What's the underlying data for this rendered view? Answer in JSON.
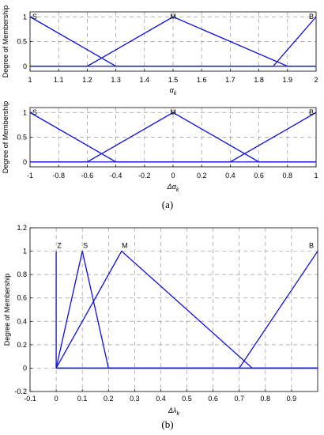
{
  "panels": {
    "a": "(a)",
    "b": "(b)"
  },
  "chart_data": [
    {
      "type": "line",
      "ylabel": "Degree of Membership",
      "xlabel_main": "α",
      "xlabel_sub": "k",
      "xlim": [
        1,
        2
      ],
      "ylim": [
        -0.1,
        1.1
      ],
      "xticks": [
        1,
        1.1,
        1.2,
        1.3,
        1.4,
        1.5,
        1.6,
        1.7,
        1.8,
        1.9,
        2
      ],
      "xtick_labels": [
        "1",
        "1.1",
        "1.2",
        "1.3",
        "1.4",
        "1.5",
        "1.6",
        "1.7",
        "1.8",
        "1.9",
        "2"
      ],
      "yticks": [
        0,
        0.5,
        1
      ],
      "ytick_labels": [
        "0",
        "0.5",
        "1"
      ],
      "grid": true,
      "series": [
        {
          "name": "S",
          "x": [
            1,
            1.3,
            2
          ],
          "y": [
            1,
            0,
            0
          ]
        },
        {
          "name": "M",
          "x": [
            1,
            1.2,
            1.5,
            1.9,
            2
          ],
          "y": [
            0,
            0,
            1,
            0,
            0
          ]
        },
        {
          "name": "B",
          "x": [
            1,
            1.85,
            2
          ],
          "y": [
            0,
            0,
            1
          ]
        }
      ],
      "line_color": "#1010d8"
    },
    {
      "type": "line",
      "ylabel": "Degree of Membership",
      "xlabel_main": "Δα",
      "xlabel_sub": "k",
      "xlim": [
        -1,
        1
      ],
      "ylim": [
        -0.1,
        1.1
      ],
      "xticks": [
        -1,
        -0.8,
        -0.6,
        -0.4,
        -0.2,
        0,
        0.2,
        0.4,
        0.6,
        0.8,
        1
      ],
      "xtick_labels": [
        "-1",
        "-0.8",
        "-0.6",
        "-0.4",
        "-0.2",
        "0",
        "0.2",
        "0.4",
        "0.6",
        "0.8",
        "1"
      ],
      "yticks": [
        0,
        0.5,
        1
      ],
      "ytick_labels": [
        "0",
        "0.5",
        "1"
      ],
      "grid": true,
      "series": [
        {
          "name": "S",
          "x": [
            -1,
            -0.4,
            1
          ],
          "y": [
            1,
            0,
            0
          ]
        },
        {
          "name": "M",
          "x": [
            -1,
            -0.6,
            0,
            0.6,
            1
          ],
          "y": [
            0,
            0,
            1,
            0,
            0
          ]
        },
        {
          "name": "B",
          "x": [
            -1,
            0.4,
            1
          ],
          "y": [
            0,
            0,
            1
          ]
        }
      ],
      "line_color": "#1010d8"
    },
    {
      "type": "line",
      "ylabel": "Degree of Membership",
      "xlabel_main": "Δλ",
      "xlabel_sub": "k",
      "xlim": [
        -0.1,
        1
      ],
      "ylim": [
        -0.2,
        1.2
      ],
      "xticks": [
        -0.1,
        0,
        0.1,
        0.2,
        0.3,
        0.4,
        0.5,
        0.6,
        0.7,
        0.8,
        0.9
      ],
      "xtick_labels": [
        "-0.1",
        "0",
        "0.1",
        "0.2",
        "0.3",
        "0.4",
        "0.5",
        "0.6",
        "0.7",
        "0.8",
        "0.9"
      ],
      "yticks": [
        -0.2,
        0,
        0.2,
        0.4,
        0.6,
        0.8,
        1,
        1.2
      ],
      "ytick_labels": [
        "-0.2",
        "0",
        "0.2",
        "0.4",
        "0.6",
        "0.8",
        "1",
        "1.2"
      ],
      "grid": true,
      "series": [
        {
          "name": "Z",
          "x": [
            0,
            0,
            1
          ],
          "y": [
            1,
            0,
            0
          ]
        },
        {
          "name": "S",
          "x": [
            0,
            0.1,
            0.2,
            1
          ],
          "y": [
            0,
            1,
            0,
            0
          ]
        },
        {
          "name": "M",
          "x": [
            0,
            0.25,
            0.75,
            1
          ],
          "y": [
            0,
            1,
            0,
            0
          ]
        },
        {
          "name": "B",
          "x": [
            0,
            0.7,
            1
          ],
          "y": [
            0,
            0,
            1
          ]
        }
      ],
      "line_color": "#1010d8"
    }
  ]
}
